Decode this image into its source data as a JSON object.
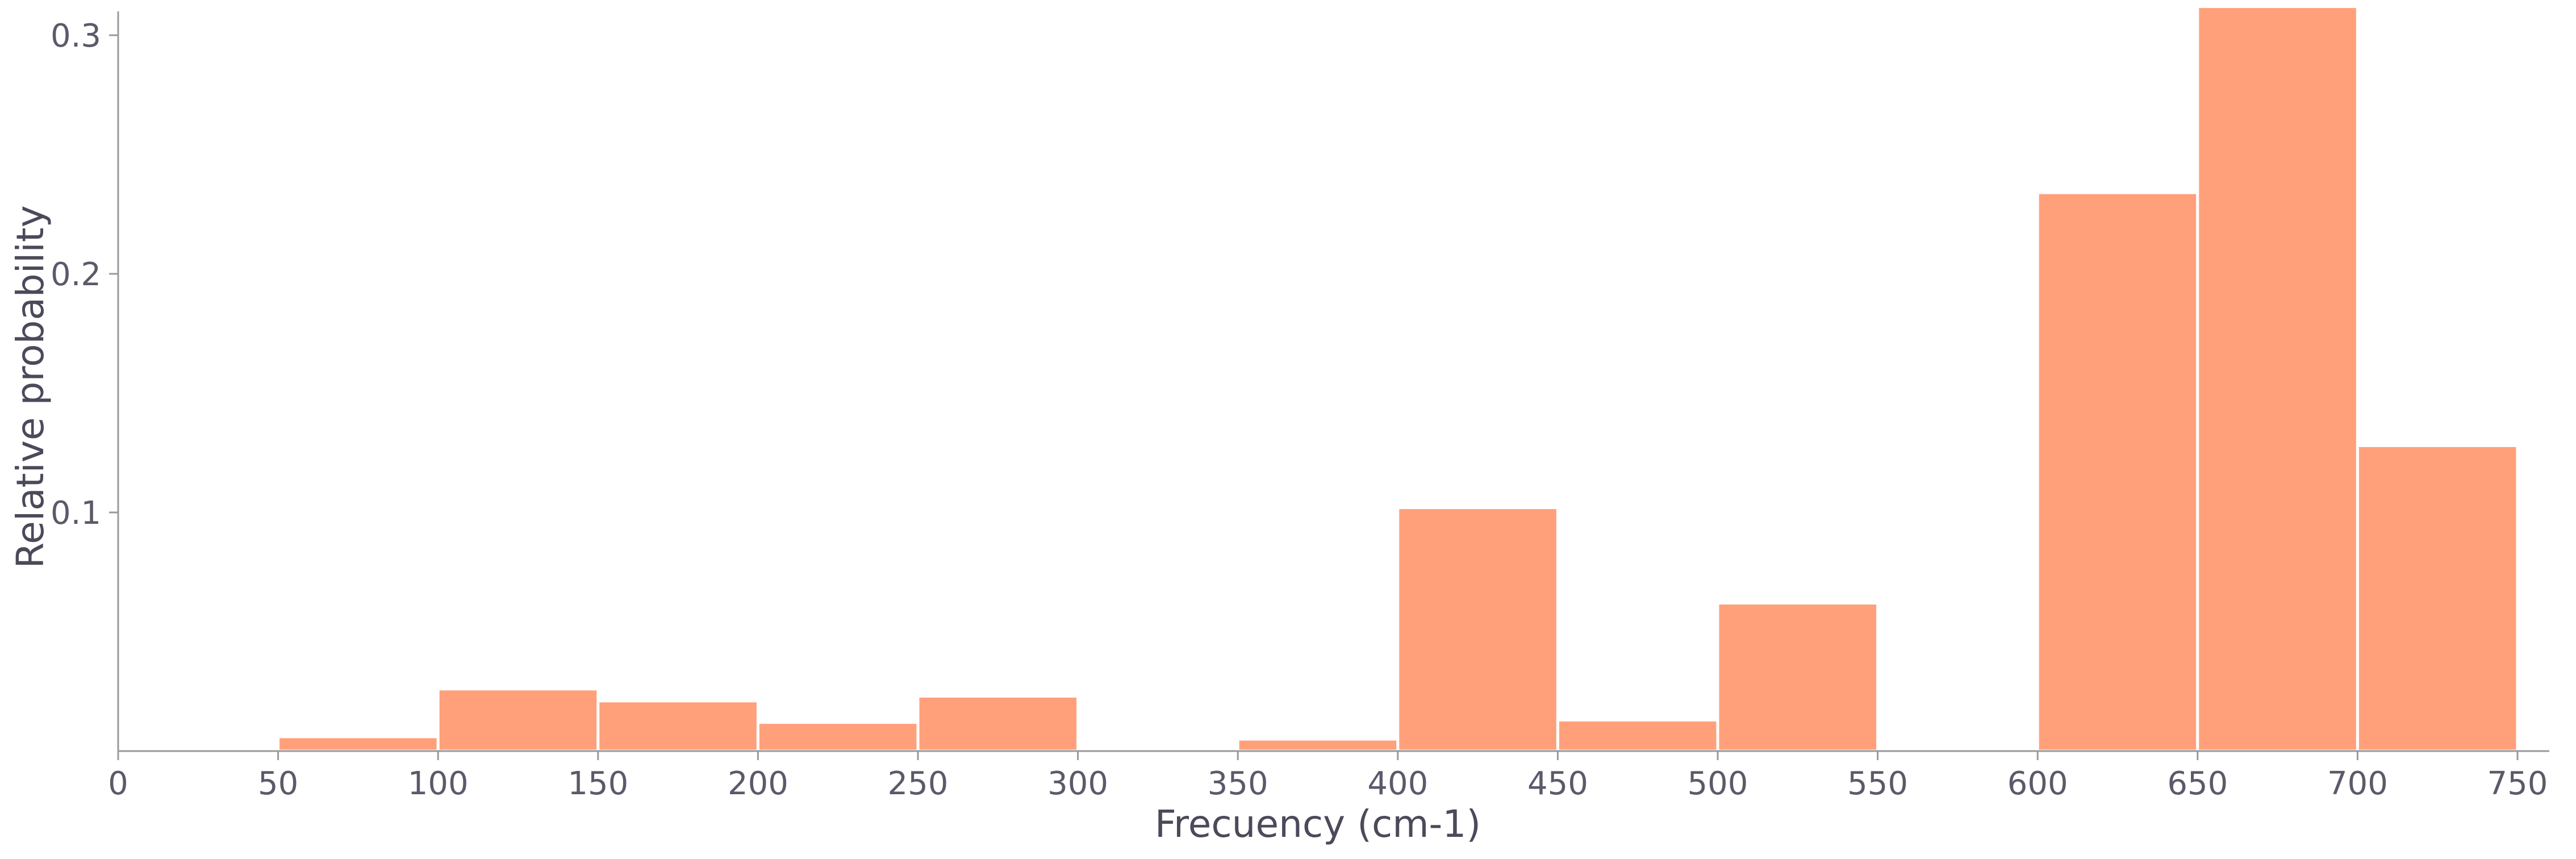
{
  "chart_data": {
    "type": "bar",
    "subtype": "histogram",
    "title": "",
    "xlabel": "Frecuency (cm-1)",
    "ylabel": "Relative probability",
    "xlim": [
      0,
      760
    ],
    "ylim": [
      0,
      0.31
    ],
    "xticks": [
      0,
      50,
      100,
      150,
      200,
      250,
      300,
      350,
      400,
      450,
      500,
      550,
      600,
      650,
      700,
      750
    ],
    "yticks": [
      0.1,
      0.2,
      0.3
    ],
    "ytick_labels": [
      "0.1",
      "0.2",
      "0.3"
    ],
    "bin_width": 50,
    "bins": [
      {
        "start": 50,
        "end": 100,
        "value": 0.006
      },
      {
        "start": 100,
        "end": 150,
        "value": 0.026
      },
      {
        "start": 150,
        "end": 200,
        "value": 0.021
      },
      {
        "start": 200,
        "end": 250,
        "value": 0.012
      },
      {
        "start": 250,
        "end": 300,
        "value": 0.023
      },
      {
        "start": 350,
        "end": 400,
        "value": 0.005
      },
      {
        "start": 400,
        "end": 450,
        "value": 0.102
      },
      {
        "start": 450,
        "end": 500,
        "value": 0.013
      },
      {
        "start": 500,
        "end": 550,
        "value": 0.062
      },
      {
        "start": 600,
        "end": 650,
        "value": 0.234
      },
      {
        "start": 650,
        "end": 700,
        "value": 0.312
      },
      {
        "start": 700,
        "end": 750,
        "value": 0.128
      }
    ],
    "bar_color": "#ffa07a",
    "axis_color": "#9a9a9a",
    "text_color": "#5a5a6a",
    "grid": false,
    "legend": "none"
  }
}
